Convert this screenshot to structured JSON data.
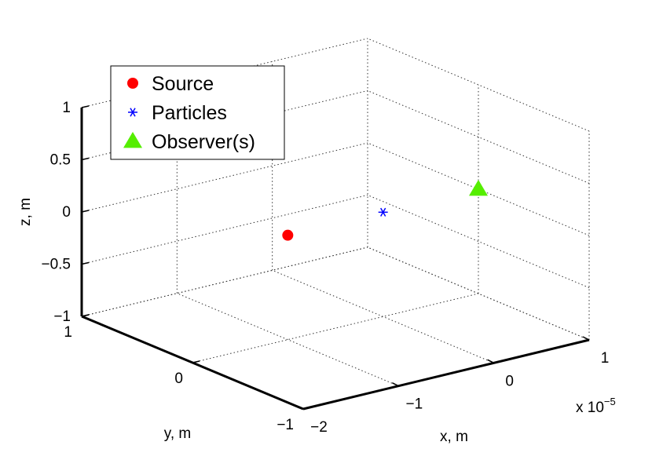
{
  "chart_data": {
    "type": "scatter",
    "title": "",
    "xlabel": "x, m",
    "ylabel": "y, m",
    "zlabel": "z, m",
    "x_exponent_label": "x 10",
    "x_exponent": "−5",
    "x_scale": 1e-05,
    "xlim": [
      -2,
      1
    ],
    "ylim": [
      -1,
      1
    ],
    "zlim": [
      -1,
      1
    ],
    "x_ticks": [
      {
        "value": -2,
        "label": "−2"
      },
      {
        "value": -1,
        "label": "−1"
      },
      {
        "value": 0,
        "label": "0"
      },
      {
        "value": 1,
        "label": "1"
      }
    ],
    "y_ticks": [
      {
        "value": -1,
        "label": "−1"
      },
      {
        "value": 0,
        "label": "0"
      },
      {
        "value": 1,
        "label": "1"
      }
    ],
    "z_ticks": [
      {
        "value": -1,
        "label": "−1"
      },
      {
        "value": -0.5,
        "label": "−0.5"
      },
      {
        "value": 0,
        "label": "0"
      },
      {
        "value": 0.5,
        "label": "0.5"
      },
      {
        "value": 1,
        "label": "1"
      }
    ],
    "grid": true,
    "legend_position": "top-left",
    "series": [
      {
        "name": "Source",
        "marker": "circle",
        "color": "#ff0000",
        "points": [
          {
            "x": -1,
            "y": 0,
            "z": 0
          }
        ]
      },
      {
        "name": "Particles",
        "marker": "asterisk",
        "color": "#0000ff",
        "points": [
          {
            "x": 0,
            "y": 0,
            "z": 0
          }
        ]
      },
      {
        "name": "Observer(s)",
        "marker": "triangle",
        "color": "#55ee00",
        "points": [
          {
            "x": 1,
            "y": 0,
            "z": 0
          }
        ]
      }
    ]
  }
}
